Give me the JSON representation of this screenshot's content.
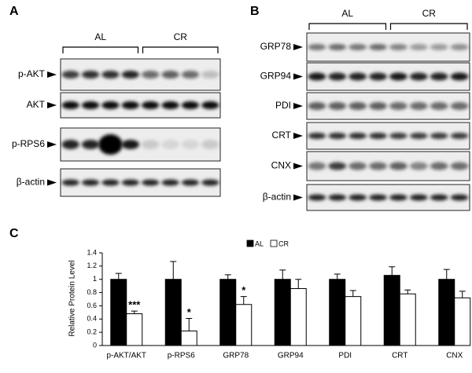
{
  "panels": {
    "a": {
      "label": "A",
      "groups": [
        "AL",
        "CR"
      ],
      "rows": [
        "p-AKT",
        "AKT",
        "p-RPS6",
        "β-actin"
      ]
    },
    "b": {
      "label": "B",
      "groups": [
        "AL",
        "CR"
      ],
      "rows": [
        "GRP78",
        "GRP94",
        "PDI",
        "CRT",
        "CNX",
        "β-actin"
      ]
    }
  },
  "chart_data": {
    "type": "bar",
    "panel_label": "C",
    "y_label": "Relative Protein Level",
    "categories": [
      "p-AKT/AKT",
      "p-RPS6",
      "GRP78",
      "GRP94",
      "PDI",
      "CRT",
      "CNX"
    ],
    "series": [
      {
        "name": "AL",
        "color": "#000000",
        "values": [
          1,
          1,
          1,
          1,
          1,
          1.06,
          1
        ],
        "errors": [
          0.09,
          0.27,
          0.07,
          0.14,
          0.08,
          0.13,
          0.15
        ]
      },
      {
        "name": "CR",
        "color": "#ffffff",
        "values": [
          0.48,
          0.22,
          0.62,
          0.86,
          0.74,
          0.78,
          0.72
        ],
        "errors": [
          0.04,
          0.19,
          0.12,
          0.14,
          0.09,
          0.06,
          0.1
        ],
        "annotations": [
          "***",
          "*",
          "*",
          null,
          null,
          null,
          null
        ]
      }
    ],
    "ylim": [
      0,
      1.4
    ],
    "yticks": [
      0,
      0.2,
      0.4,
      0.6,
      0.8,
      1,
      1.2,
      1.4
    ],
    "legend": "top"
  }
}
